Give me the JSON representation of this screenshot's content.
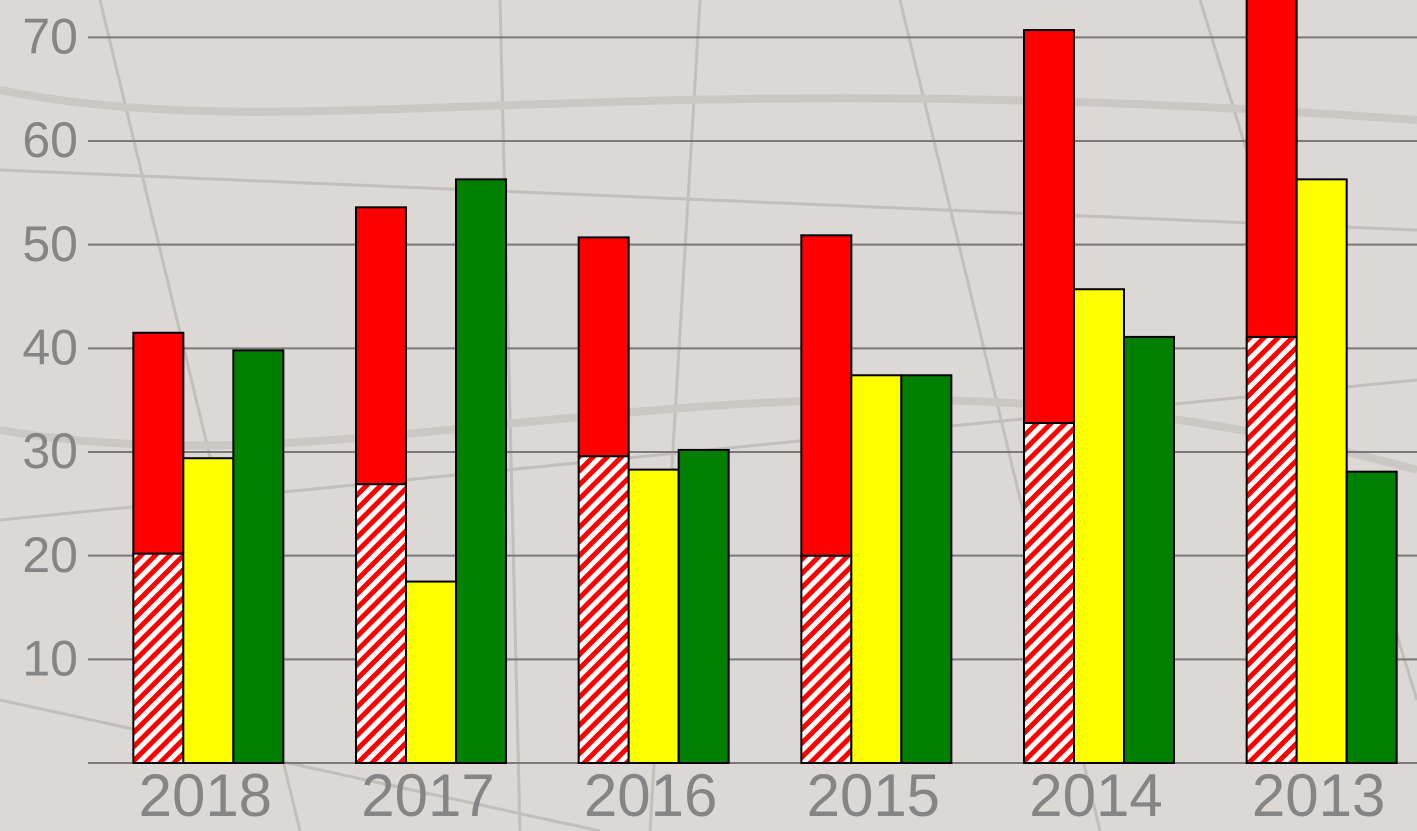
{
  "chart_data": {
    "type": "bar",
    "categories": [
      "2018",
      "2017",
      "2016",
      "2015",
      "2014",
      "2013"
    ],
    "series": [
      {
        "color": "#ff0000",
        "pattern": "hatch",
        "stack": "red",
        "values": [
          20.2,
          26.9,
          29.6,
          20.0,
          32.8,
          41.1
        ]
      },
      {
        "color": "#ff0000",
        "stack": "red",
        "values": [
          21.3,
          26.7,
          21.1,
          30.9,
          37.9,
          34.0
        ]
      },
      {
        "color": "#ffff00",
        "values": [
          29.4,
          17.5,
          28.3,
          37.4,
          45.7,
          56.3
        ]
      },
      {
        "color": "#008000",
        "values": [
          39.8,
          56.3,
          30.2,
          37.4,
          41.1,
          28.1
        ]
      }
    ],
    "ylim": [
      0,
      73.6
    ],
    "yticks": [
      10,
      20,
      30,
      40,
      50,
      60,
      70
    ],
    "grid": true
  }
}
